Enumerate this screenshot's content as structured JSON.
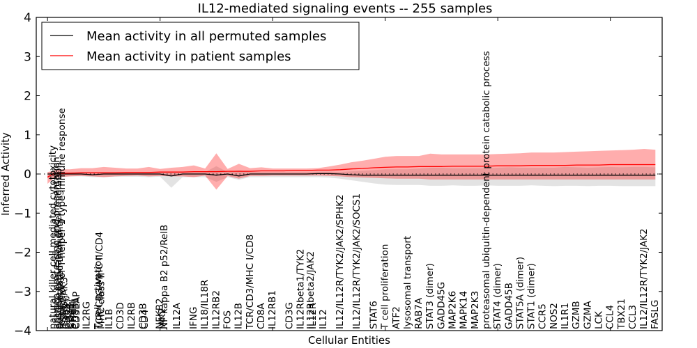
{
  "chart_data": {
    "type": "line",
    "title": "IL12-mediated signaling events -- 255 samples",
    "xlabel": "Cellular Entities",
    "ylabel": "Inferred Activity",
    "ylim": [
      -4,
      4
    ],
    "yticks": [
      -4,
      -3,
      -2,
      -1,
      0,
      1,
      2,
      3,
      4
    ],
    "ytick_labels": [
      "−4",
      "−3",
      "−2",
      "−1",
      "0",
      "1",
      "2",
      "3",
      "4"
    ],
    "grid": false,
    "zero_reference_line": "dotted",
    "legend": {
      "placement": "top-left",
      "entries": [
        {
          "label": "Mean activity in all permuted samples",
          "color": "#000000"
        },
        {
          "label": "Mean activity in patient samples",
          "color": "#ff0000"
        }
      ]
    },
    "band_colors": {
      "patient": "#ff0000",
      "permuted": "#b0b0b0"
    },
    "categories": [
      "natural killer cell mediated cytotoxicity",
      "antigen processing and presentation",
      "positive regulation of cell migration",
      "cell-mediated immunity",
      "regulation of T-helper 1 type immune response",
      "IL2RG/JAK3",
      "CD8B",
      "CD247",
      "CD3E",
      "STAT4",
      "CD8B1",
      "CD3EAP",
      "IL2RG",
      "T cell activation",
      "TCR/CD3/MHC II/CD4",
      "MHC class II",
      "IL1B",
      "CD3D",
      "IL2RB",
      "CD3B",
      "CD4",
      "NFKB2",
      "JAK2",
      "NF kappa B2 p52/RelB",
      "IL12A",
      "IFNG",
      "IL18/IL18R",
      "IL12RB2",
      "FOS",
      "IL12B",
      "TCR/CD3/MHC I/CD8",
      "CD8A",
      "IL12RB1",
      "CD3G",
      "IL12Rbeta1/TYK2",
      "IL12Rbeta2/JAK2",
      "IL12R",
      "IL12",
      "IL12/IL12R/TYK2/JAK2/SPHK2",
      "IL12/IL12R/TYK2/JAK2/SOCS1",
      "STAT6",
      "T cell proliferation",
      "ATF2",
      "lysosomal transport",
      "RAB7A",
      "STAT3 (dimer)",
      "GADD45G",
      "MAP2K6",
      "MAPK14",
      "MAP2K3",
      "proteasomal ubiquitin-dependent protein catabolic process",
      "STAT4 (dimer)",
      "GADD45B",
      "STAT5A (dimer)",
      "STAT1 (dimer)",
      "CCR5",
      "NOS2",
      "IL1R1",
      "GZMB",
      "GZMA",
      "LCK",
      "CCL4",
      "TBX21",
      "CCL3",
      "IL12/IL12R/TYK2/JAK2",
      "FASLG"
    ],
    "label_positions_index": [
      0,
      0.3,
      0.5,
      0.6,
      0.8,
      1.0,
      1.2,
      1.4,
      1.6,
      1.8,
      2.0,
      2.1,
      3.0,
      4.0,
      4.15,
      4.3,
      5.0,
      6.0,
      7.0,
      8.0,
      8.15,
      9.5,
      9.7,
      9.9,
      11.0,
      12.5,
      13.5,
      14.5,
      15.5,
      16.5,
      17.5,
      18.5,
      19.5,
      21.0,
      22.0,
      22.9,
      23.1,
      24.0,
      25.5,
      27.0,
      28.5,
      29.5,
      30.5,
      31.5,
      32.5,
      33.5,
      34.5,
      35.5,
      36.5,
      37.5,
      38.5,
      39.5,
      40.5,
      41.5,
      42.5,
      43.5,
      44.5,
      45.5,
      46.5,
      47.5,
      48.5,
      49.5,
      50.5,
      51.5,
      52.5,
      53.5
    ],
    "series": [
      {
        "name": "Mean activity in patient samples",
        "color": "#ff0000",
        "x": [
          0,
          0.5,
          1,
          2,
          3,
          4,
          5,
          6,
          7,
          8,
          9,
          10,
          11,
          12,
          13,
          14,
          15,
          16,
          17,
          18,
          19,
          20,
          21,
          22,
          23,
          24,
          25,
          26,
          27,
          28,
          29,
          30,
          31,
          32,
          33,
          34,
          35,
          36,
          37,
          38,
          39,
          40,
          41,
          42,
          43,
          44,
          45,
          46,
          47,
          48,
          49,
          50,
          51,
          52,
          53,
          54
        ],
        "mean": [
          -0.08,
          0.0,
          0.02,
          0.02,
          0.03,
          0.03,
          0.03,
          0.03,
          0.04,
          0.04,
          0.04,
          0.05,
          0.05,
          0.05,
          0.06,
          0.06,
          0.06,
          0.07,
          0.07,
          0.07,
          0.08,
          0.08,
          0.08,
          0.09,
          0.09,
          0.1,
          0.1,
          0.11,
          0.13,
          0.14,
          0.16,
          0.17,
          0.18,
          0.18,
          0.19,
          0.19,
          0.19,
          0.2,
          0.2,
          0.2,
          0.2,
          0.21,
          0.21,
          0.21,
          0.22,
          0.22,
          0.22,
          0.22,
          0.23,
          0.23,
          0.23,
          0.24,
          0.24,
          0.24,
          0.24,
          0.24
        ],
        "upper": [
          0.05,
          0.08,
          0.12,
          0.12,
          0.15,
          0.15,
          0.18,
          0.16,
          0.14,
          0.14,
          0.18,
          0.13,
          0.16,
          0.18,
          0.22,
          0.14,
          0.53,
          0.13,
          0.26,
          0.15,
          0.17,
          0.14,
          0.14,
          0.14,
          0.14,
          0.15,
          0.19,
          0.24,
          0.3,
          0.34,
          0.39,
          0.44,
          0.46,
          0.46,
          0.46,
          0.52,
          0.5,
          0.5,
          0.5,
          0.5,
          0.5,
          0.51,
          0.52,
          0.53,
          0.55,
          0.55,
          0.55,
          0.56,
          0.57,
          0.58,
          0.59,
          0.6,
          0.61,
          0.62,
          0.64,
          0.62
        ],
        "lower": [
          -0.25,
          -0.12,
          -0.08,
          -0.06,
          -0.05,
          -0.06,
          -0.08,
          -0.06,
          -0.05,
          -0.04,
          -0.06,
          -0.05,
          -0.06,
          -0.06,
          -0.08,
          -0.04,
          -0.4,
          -0.05,
          -0.12,
          -0.05,
          -0.05,
          -0.04,
          -0.04,
          -0.04,
          -0.04,
          -0.04,
          -0.05,
          -0.06,
          -0.08,
          -0.09,
          -0.1,
          -0.11,
          -0.12,
          -0.12,
          -0.12,
          -0.14,
          -0.14,
          -0.14,
          -0.14,
          -0.14,
          -0.14,
          -0.14,
          -0.14,
          -0.14,
          -0.14,
          -0.14,
          -0.14,
          -0.14,
          -0.14,
          -0.14,
          -0.14,
          -0.14,
          -0.14,
          -0.14,
          -0.14,
          -0.14
        ]
      },
      {
        "name": "Mean activity in all permuted samples",
        "color": "#000000",
        "x": [
          0,
          0.5,
          1,
          2,
          3,
          4,
          5,
          6,
          7,
          8,
          9,
          10,
          11,
          12,
          13,
          14,
          15,
          16,
          17,
          18,
          19,
          20,
          21,
          22,
          23,
          24,
          25,
          26,
          27,
          28,
          29,
          30,
          31,
          32,
          33,
          34,
          35,
          36,
          37,
          38,
          39,
          40,
          41,
          42,
          43,
          44,
          45,
          46,
          47,
          48,
          49,
          50,
          51,
          52,
          53,
          54
        ],
        "mean": [
          0.0,
          0.0,
          0.0,
          0.0,
          0.0,
          -0.02,
          0.0,
          0.0,
          0.0,
          0.0,
          0.0,
          0.0,
          -0.05,
          0.0,
          0.0,
          0.0,
          -0.03,
          0.0,
          -0.05,
          0.0,
          0.0,
          0.0,
          0.0,
          0.0,
          0.0,
          0.01,
          0.01,
          0.0,
          -0.02,
          -0.03,
          -0.03,
          -0.03,
          -0.03,
          -0.03,
          -0.03,
          -0.03,
          -0.03,
          -0.03,
          -0.03,
          -0.03,
          -0.03,
          -0.03,
          -0.03,
          -0.03,
          -0.03,
          -0.03,
          -0.03,
          -0.03,
          -0.03,
          -0.03,
          -0.03,
          -0.03,
          -0.03,
          -0.03,
          -0.03,
          -0.03
        ],
        "upper": [
          0.05,
          0.05,
          0.05,
          0.05,
          0.05,
          0.05,
          0.05,
          0.05,
          0.05,
          0.05,
          0.05,
          0.05,
          0.05,
          0.05,
          0.05,
          0.05,
          0.2,
          0.05,
          0.1,
          0.05,
          0.05,
          0.05,
          0.05,
          0.05,
          0.05,
          0.06,
          0.06,
          0.05,
          0.07,
          0.08,
          0.1,
          0.12,
          0.12,
          0.12,
          0.14,
          0.16,
          0.16,
          0.15,
          0.15,
          0.15,
          0.15,
          0.16,
          0.17,
          0.16,
          0.16,
          0.16,
          0.16,
          0.18,
          0.17,
          0.16,
          0.17,
          0.18,
          0.17,
          0.18,
          0.18,
          0.17
        ],
        "lower": [
          -0.1,
          -0.08,
          -0.08,
          -0.06,
          -0.06,
          -0.08,
          -0.08,
          -0.07,
          -0.07,
          -0.07,
          -0.08,
          -0.07,
          -0.35,
          -0.08,
          -0.08,
          -0.08,
          -0.2,
          -0.08,
          -0.15,
          -0.08,
          -0.08,
          -0.08,
          -0.08,
          -0.08,
          -0.08,
          -0.08,
          -0.09,
          -0.12,
          -0.16,
          -0.2,
          -0.24,
          -0.27,
          -0.28,
          -0.28,
          -0.28,
          -0.3,
          -0.3,
          -0.29,
          -0.3,
          -0.3,
          -0.29,
          -0.3,
          -0.3,
          -0.3,
          -0.29,
          -0.3,
          -0.31,
          -0.3,
          -0.3,
          -0.31,
          -0.3,
          -0.3,
          -0.31,
          -0.31,
          -0.31,
          -0.31
        ]
      }
    ],
    "x_range_index": [
      -1.0,
      54.6
    ]
  }
}
